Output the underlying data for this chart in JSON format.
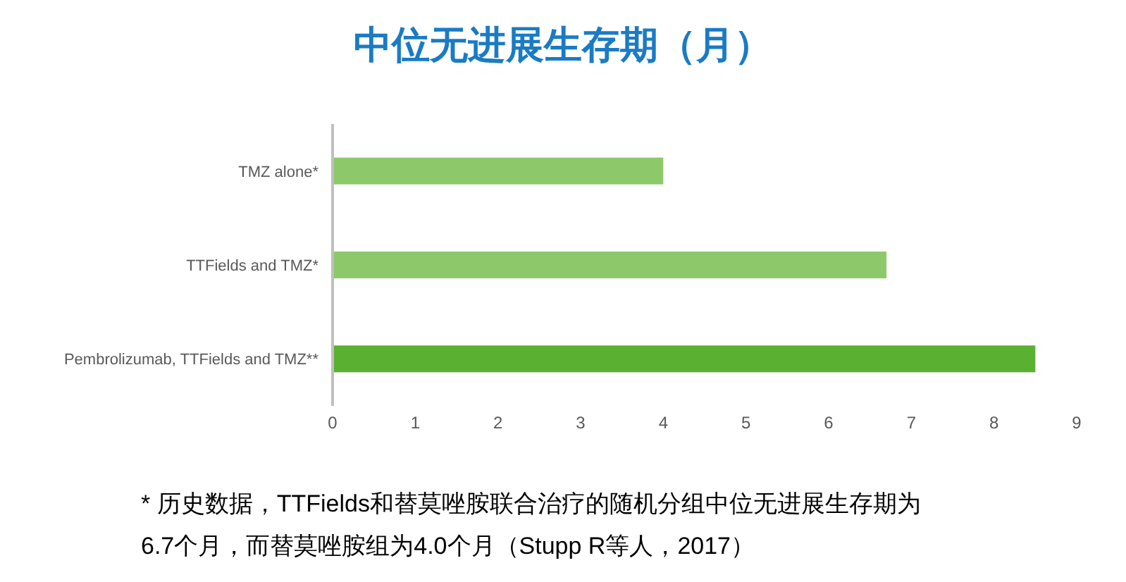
{
  "chart_data": {
    "type": "bar",
    "orientation": "horizontal",
    "title": "中位无进展生存期（月）",
    "categories": [
      "TMZ alone*",
      "TTFields and TMZ*",
      "Pembrolizumab, TTFields and TMZ**"
    ],
    "values": [
      4.0,
      6.7,
      8.5
    ],
    "colors": [
      "#8dc96a",
      "#8dc96a",
      "#5ab031"
    ],
    "xlim": [
      0,
      9
    ],
    "xticks": [
      0,
      1,
      2,
      3,
      4,
      5,
      6,
      7,
      8,
      9
    ],
    "grid": false,
    "annotations": [
      "* 历史数据，TTFields和替莫唑胺联合治疗的随机分组中位无进展生存期为6.7个月，而替莫唑胺组为4.0个月（Stupp R等人，2017）"
    ]
  }
}
